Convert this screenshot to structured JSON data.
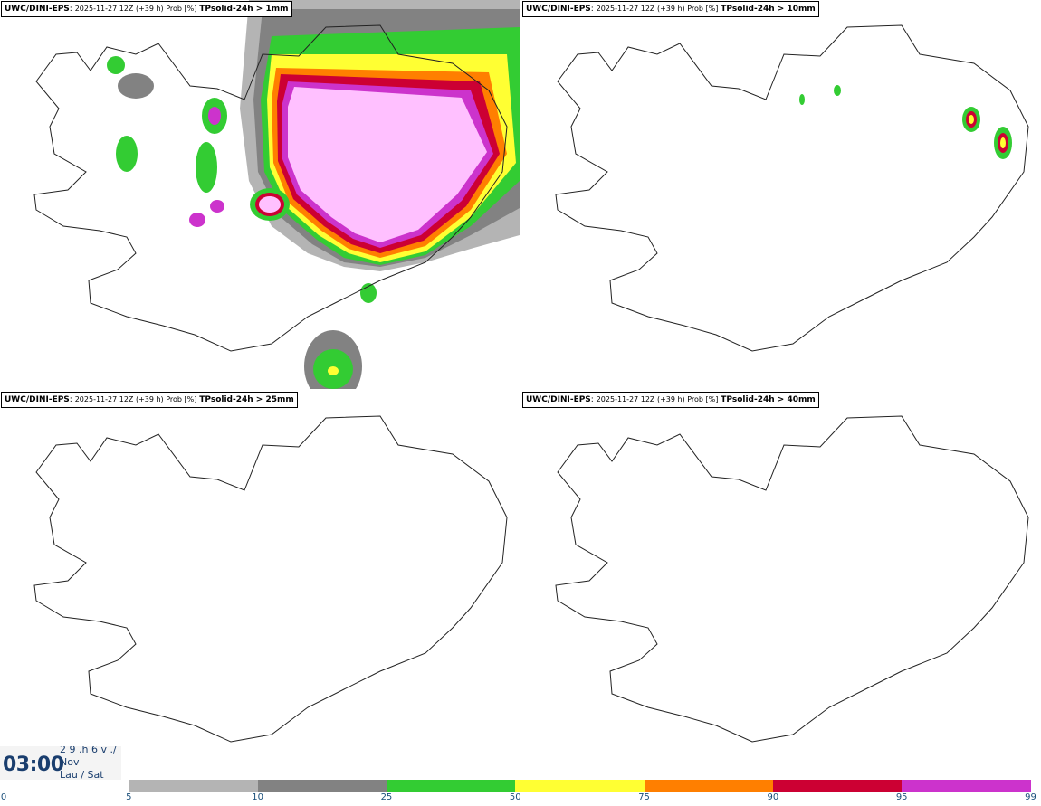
{
  "panels": [
    {
      "model": "UWC/DINI-EPS",
      "run": "2025-11-27 12Z (+39 h) Prob [%]",
      "param": "TPsolid-24h > 1mm"
    },
    {
      "model": "UWC/DINI-EPS",
      "run": "2025-11-27 12Z (+39 h) Prob [%]",
      "param": "TPsolid-24h > 10mm"
    },
    {
      "model": "UWC/DINI-EPS",
      "run": "2025-11-27 12Z (+39 h) Prob [%]",
      "param": "TPsolid-24h > 25mm"
    },
    {
      "model": "UWC/DINI-EPS",
      "run": "2025-11-27 12Z (+39 h) Prob [%]",
      "param": "TPsolid-24h > 40mm"
    }
  ],
  "time": {
    "clock": "03:00",
    "date_line1": "2 9 .h 6 v ./",
    "date_line2": "Nov",
    "date_line3": "Lau / Sat"
  },
  "legend": {
    "ticks": [
      "0",
      "5",
      "10",
      "25",
      "50",
      "75",
      "90",
      "95",
      "99"
    ],
    "colors": [
      "#ffffff",
      "#b4b4b4",
      "#828282",
      "#33cc33",
      "#ffff33",
      "#ff7f00",
      "#cc0033",
      "#cc33cc",
      "#ffc0ff"
    ]
  }
}
